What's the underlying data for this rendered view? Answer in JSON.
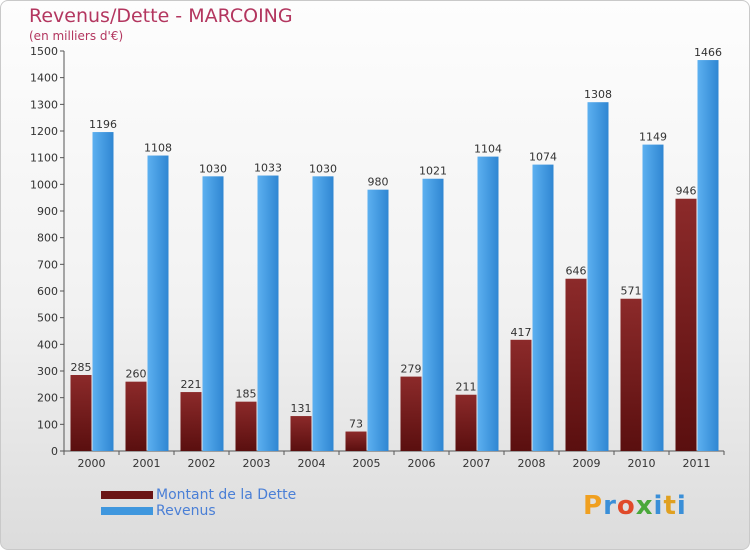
{
  "chart_data": {
    "type": "bar",
    "title": "Revenus/Dette - MARCOING",
    "subtitle": "(en milliers d'€)",
    "categories": [
      "2000",
      "2001",
      "2002",
      "2003",
      "2004",
      "2005",
      "2006",
      "2007",
      "2008",
      "2009",
      "2010",
      "2011"
    ],
    "series": [
      {
        "name": "Montant de la Dette",
        "color": "#7a1f1f",
        "values": [
          285,
          260,
          221,
          185,
          131,
          73,
          279,
          211,
          417,
          646,
          571,
          946
        ]
      },
      {
        "name": "Revenus",
        "color": "#3f97de",
        "values": [
          1196,
          1108,
          1030,
          1033,
          1030,
          980,
          1021,
          1104,
          1074,
          1308,
          1149,
          1466
        ]
      }
    ],
    "ylim": [
      0,
      1500
    ],
    "yticks": [
      0,
      100,
      200,
      300,
      400,
      500,
      600,
      700,
      800,
      900,
      1000,
      1100,
      1200,
      1300,
      1400,
      1500
    ],
    "grid": false,
    "legend_position": "bottom-left"
  },
  "logo": {
    "text": "Proxiti",
    "colors": [
      "#f0a020",
      "#3a8fd8",
      "#e04a2a",
      "#4aa83a",
      "#3a8fd8",
      "#e0a020",
      "#3a8fd8"
    ]
  }
}
